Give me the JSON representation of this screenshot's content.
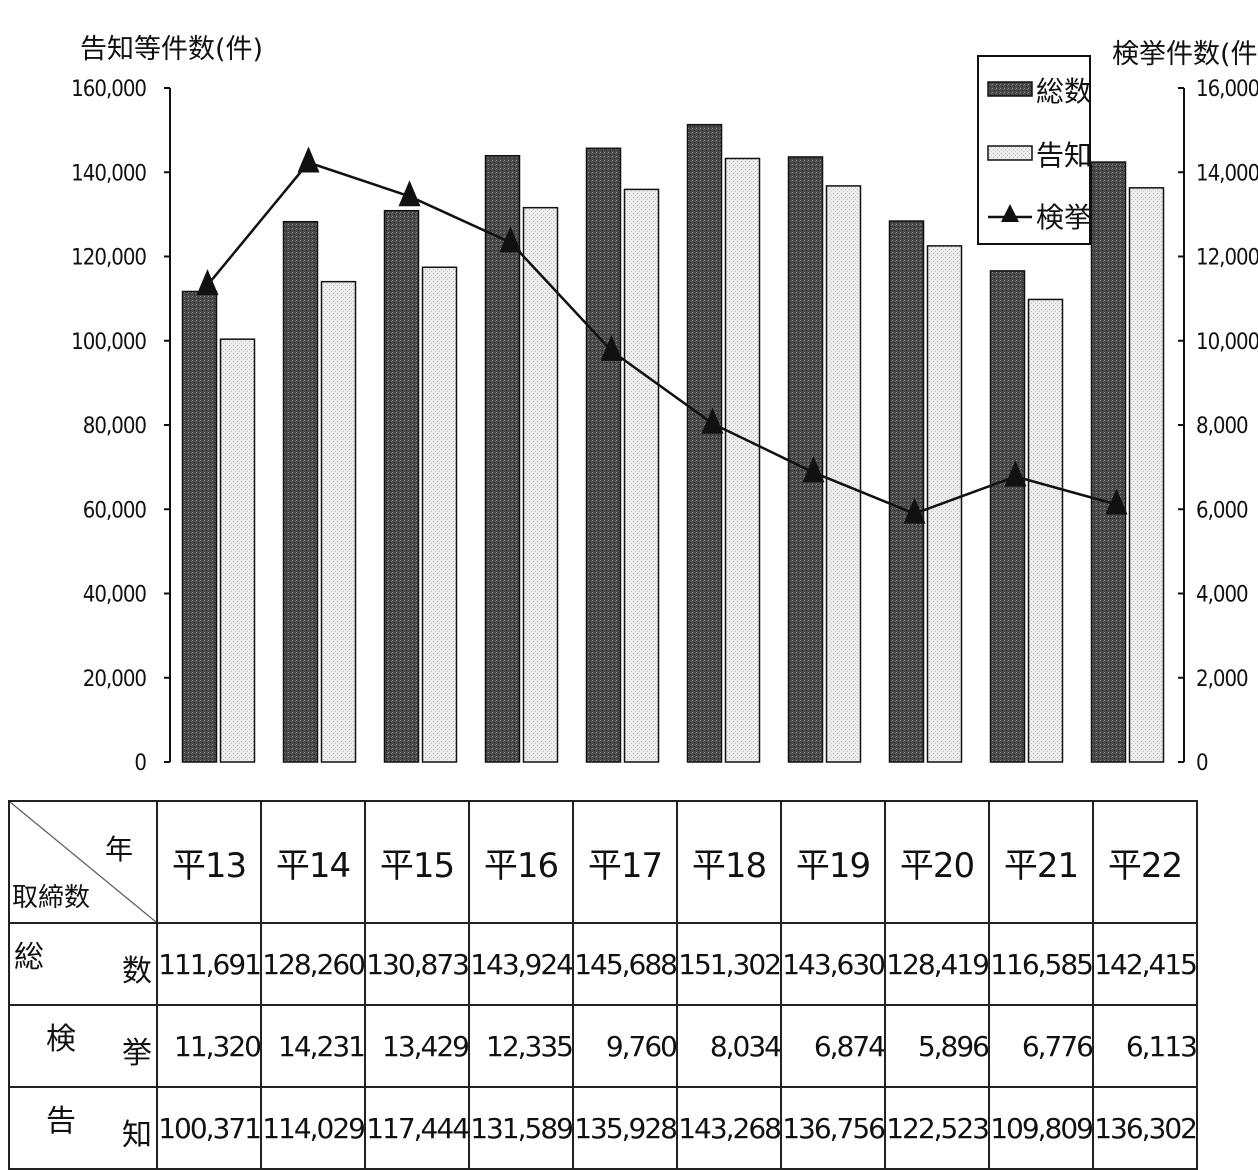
{
  "chart_data": {
    "type": "bar+line",
    "categories": [
      "平13",
      "平14",
      "平15",
      "平16",
      "平17",
      "平18",
      "平19",
      "平20",
      "平21",
      "平22"
    ],
    "series": [
      {
        "name": "総数",
        "type": "bar",
        "axis": "left",
        "color": "#3a3a3a",
        "values": [
          111691,
          128260,
          130873,
          143924,
          145688,
          151302,
          143630,
          128419,
          116585,
          142415
        ]
      },
      {
        "name": "告知",
        "type": "bar",
        "axis": "left",
        "color": "#e4e4e4",
        "values": [
          100371,
          114029,
          117444,
          131589,
          135928,
          143268,
          136756,
          122523,
          109809,
          136302
        ]
      },
      {
        "name": "検挙",
        "type": "line",
        "axis": "right",
        "color": "#111111",
        "marker": "triangle",
        "values": [
          11320,
          14231,
          13429,
          12335,
          9760,
          8034,
          6874,
          5896,
          6776,
          6113
        ]
      }
    ],
    "ylabel_left": "告知等件数(件)",
    "ylabel_right": "検挙件数(件)",
    "ylim_left": [
      0,
      160000
    ],
    "ylim_right": [
      0,
      16000
    ],
    "yticks_left": [
      "0",
      "20,000",
      "40,000",
      "60,000",
      "80,000",
      "100,000",
      "120,000",
      "140,000",
      "160,000"
    ],
    "yticks_right": [
      "0",
      "2,000",
      "4,000",
      "6,000",
      "8,000",
      "10,000",
      "12,000",
      "14,000",
      "16,000"
    ],
    "legend_position": "top-right",
    "grid": false
  },
  "table": {
    "corner_year": "年",
    "corner_label": "取締数",
    "rows": [
      {
        "label_left": "総",
        "label_right": "数",
        "values": [
          "111,691",
          "128,260",
          "130,873",
          "143,924",
          "145,688",
          "151,302",
          "143,630",
          "128,419",
          "116,585",
          "142,415"
        ]
      },
      {
        "label_left": "検",
        "label_right": "挙",
        "values": [
          "11,320",
          "14,231",
          "13,429",
          "12,335",
          "9,760",
          "8,034",
          "6,874",
          "5,896",
          "6,776",
          "6,113"
        ]
      },
      {
        "label_left": "告",
        "label_right": "知",
        "values": [
          "100,371",
          "114,029",
          "117,444",
          "131,589",
          "135,928",
          "143,268",
          "136,756",
          "122,523",
          "109,809",
          "136,302"
        ]
      }
    ]
  }
}
